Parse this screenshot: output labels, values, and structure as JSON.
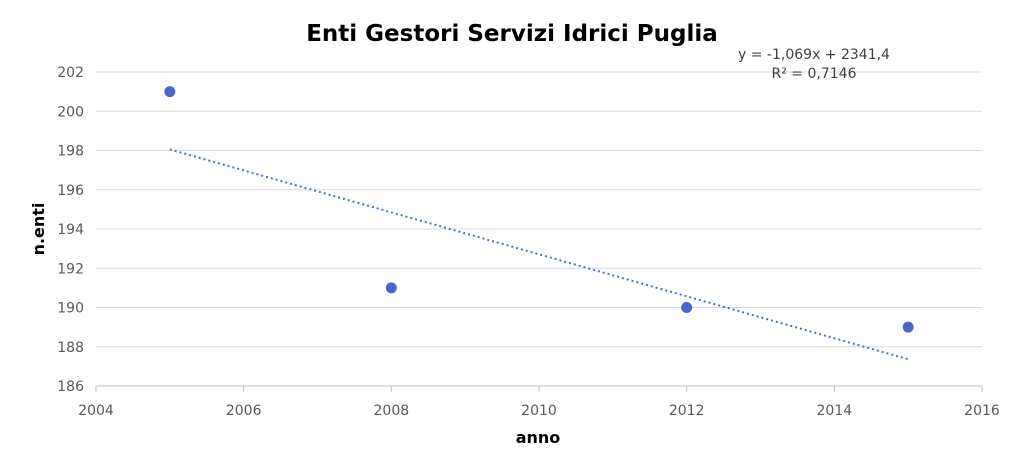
{
  "chart_data": {
    "type": "scatter",
    "title": "Enti Gestori Servizi Idrici Puglia",
    "xlabel": "anno",
    "ylabel": "n.enti",
    "xlim": [
      2004,
      2016
    ],
    "ylim": [
      186,
      202
    ],
    "x_ticks": [
      2004,
      2006,
      2008,
      2010,
      2012,
      2014,
      2016
    ],
    "y_ticks": [
      186,
      188,
      190,
      192,
      194,
      196,
      198,
      200,
      202
    ],
    "grid": true,
    "legend": "none",
    "series": [
      {
        "x": [
          2005,
          2008,
          2012,
          2015
        ],
        "y": [
          201,
          191,
          190,
          189
        ]
      }
    ],
    "trendline": {
      "type": "linear",
      "slope": -1.069,
      "intercept": 2341.4,
      "x_range": [
        2005,
        2015
      ],
      "equation_label": "y = -1,069x + 2341,4",
      "r2_label": "R² = 0,7146"
    },
    "colors": {
      "point": "#4a66c8",
      "trendline": "#4472c4",
      "grid": "#d9d9d9"
    }
  }
}
